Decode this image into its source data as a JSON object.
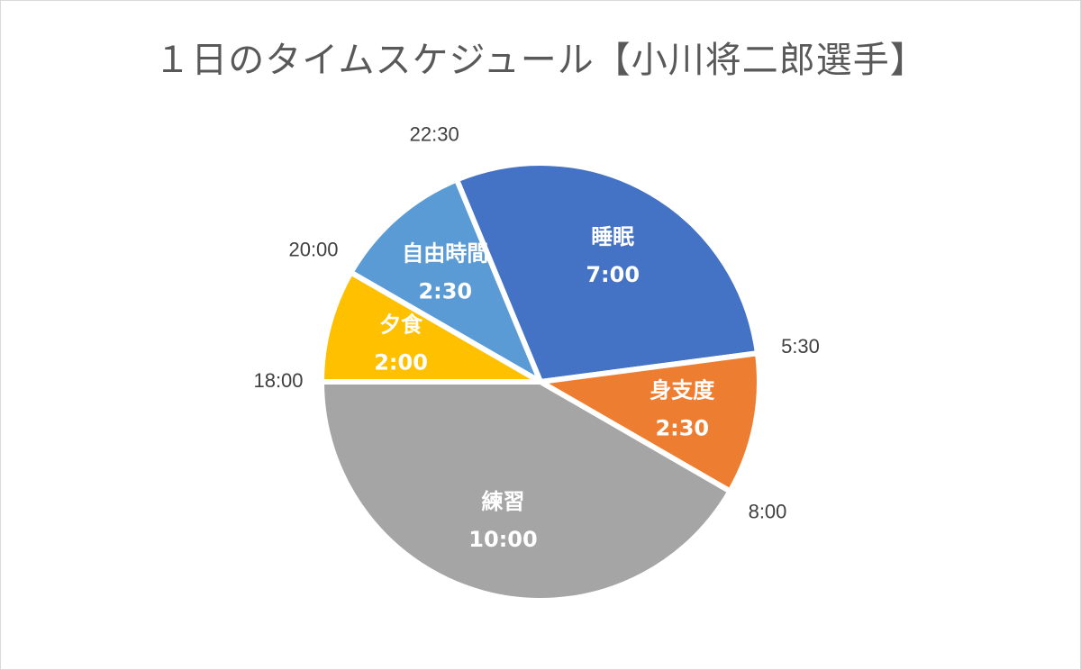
{
  "chart_data": {
    "type": "pie",
    "title": "１日のタイムスケジュール【小川将二郎選手】",
    "start_time": "22:30",
    "slices": [
      {
        "name": "睡眠",
        "duration": "7:00",
        "hours": 7.0,
        "color": "#4472C4",
        "end_time": "5:30"
      },
      {
        "name": "身支度",
        "duration": "2:30",
        "hours": 2.5,
        "color": "#ED7D31",
        "end_time": "8:00"
      },
      {
        "name": "練習",
        "duration": "10:00",
        "hours": 10.0,
        "color": "#A5A5A5",
        "end_time": "18:00"
      },
      {
        "name": "夕食",
        "duration": "2:00",
        "hours": 2.0,
        "color": "#FFC000",
        "end_time": "20:00"
      },
      {
        "name": "自由時間",
        "duration": "2:30",
        "hours": 2.5,
        "color": "#5B9BD5",
        "end_time": "22:30"
      }
    ]
  }
}
